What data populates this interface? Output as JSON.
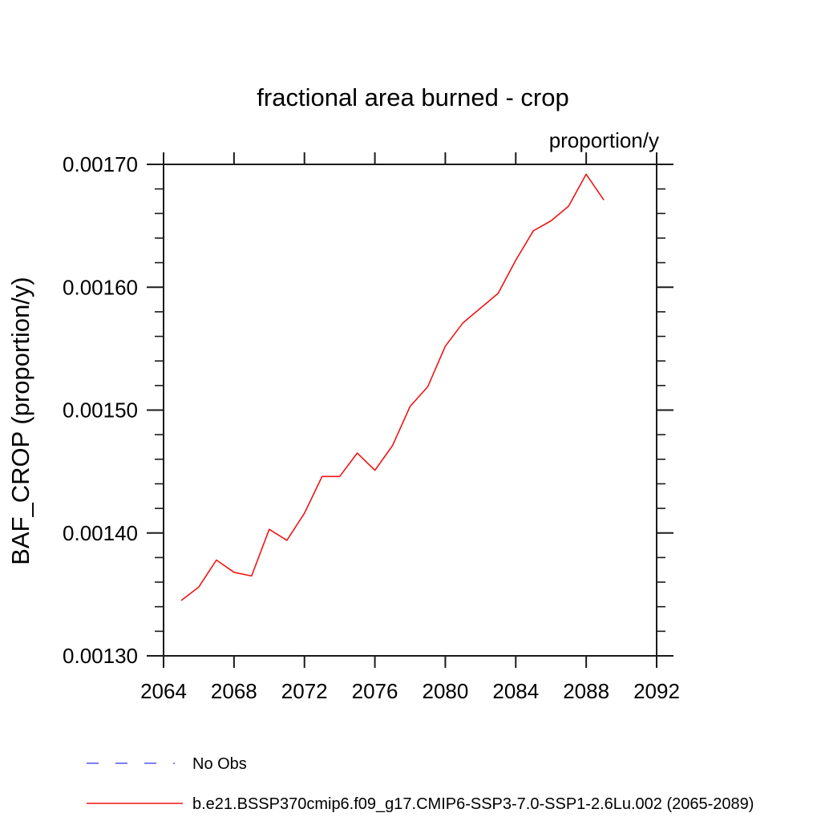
{
  "title": "fractional area burned - crop",
  "units_label": "proportion/y",
  "y_axis_label": "BAF_CROP (proportion/y)",
  "legend": [
    {
      "label": "No Obs",
      "color": "#8080f0",
      "dashed": true
    },
    {
      "label": "b.e21.BSSP370cmip6.f09_g17.CMIP6-SSP3-7.0-SSP1-2.6Lu.002 (2065-2089)",
      "color": "#f01414",
      "dashed": false
    }
  ],
  "chart_data": {
    "type": "line",
    "title": "fractional area burned - crop",
    "xlabel": "",
    "ylabel": "BAF_CROP (proportion/y)",
    "units": "proportion/y",
    "xlim": [
      2064,
      2092
    ],
    "ylim": [
      0.0013,
      0.0017
    ],
    "grid": false,
    "legend_position": "bottom-left",
    "x_ticks": [
      2064,
      2068,
      2072,
      2076,
      2080,
      2084,
      2088,
      2092
    ],
    "x_tick_labels": [
      "2064",
      "2068",
      "2072",
      "2076",
      "2080",
      "2084",
      "2088",
      "2092"
    ],
    "y_major_ticks": [
      0.0013,
      0.0014,
      0.0015,
      0.0016,
      0.0017
    ],
    "y_tick_labels": [
      "0.00130",
      "0.00140",
      "0.00150",
      "0.00160",
      "0.00170"
    ],
    "y_minor_step": 2e-05,
    "series": [
      {
        "name": "b.e21.BSSP370cmip6.f09_g17.CMIP6-SSP3-7.0-SSP1-2.6Lu.002 (2065-2089)",
        "color": "#f01414",
        "x": [
          2065,
          2066,
          2067,
          2068,
          2069,
          2070,
          2071,
          2072,
          2073,
          2074,
          2075,
          2076,
          2077,
          2078,
          2079,
          2080,
          2081,
          2082,
          2083,
          2084,
          2085,
          2086,
          2087,
          2088,
          2089
        ],
        "values": [
          0.001345,
          0.001356,
          0.001378,
          0.001368,
          0.001365,
          0.001403,
          0.001394,
          0.001416,
          0.001446,
          0.001446,
          0.001465,
          0.001451,
          0.001471,
          0.001503,
          0.001519,
          0.001552,
          0.001571,
          0.001583,
          0.001595,
          0.001622,
          0.001646,
          0.001654,
          0.001666,
          0.001692,
          0.001671
        ]
      }
    ]
  },
  "plot_style": {
    "axis_color": "#1a1a1a",
    "background": "#ffffff"
  }
}
